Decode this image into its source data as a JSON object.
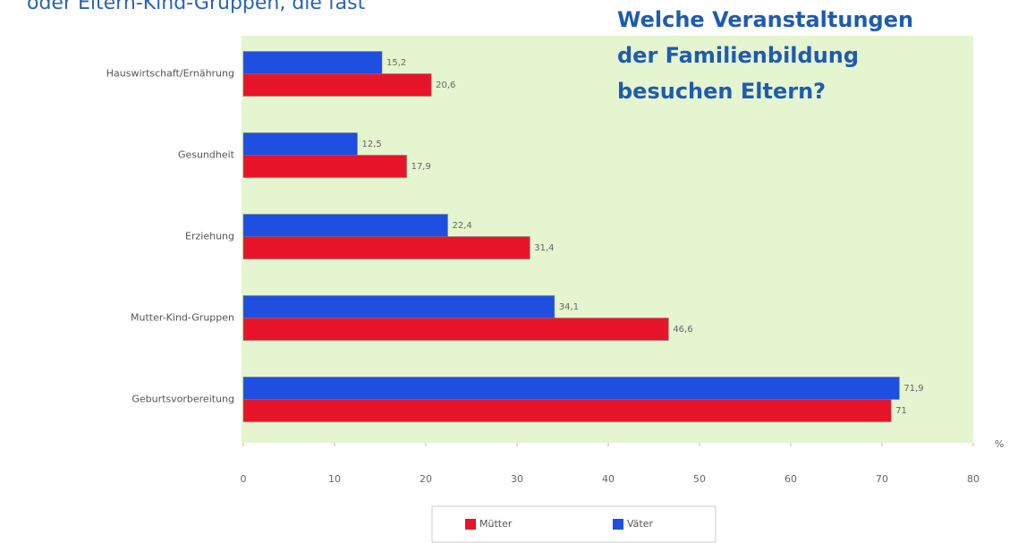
{
  "intro": "oder Eltern-Kind-Gruppen, die fast",
  "chart_data": {
    "type": "bar",
    "orientation": "horizontal",
    "title": [
      "Welche Veranstaltungen",
      "der Familienbildung",
      "besuchen Eltern?"
    ],
    "xlabel": "%",
    "categories": [
      "Hauswirtschaft/Ernährung",
      "Gesundheit",
      "Erziehung",
      "Mutter-Kind-Gruppen",
      "Geburtsvorbereitung"
    ],
    "series": [
      {
        "name": "Väter",
        "color": "#1f4fe0",
        "values": [
          15.2,
          12.5,
          22.4,
          34.1,
          71.9
        ],
        "value_labels": [
          "15,2",
          "12,5",
          "22,4",
          "34,1",
          "71,9"
        ]
      },
      {
        "name": "Mütter",
        "color": "#e8142a",
        "values": [
          20.6,
          17.9,
          31.4,
          46.6,
          71
        ],
        "value_labels": [
          "20,6",
          "17,9",
          "31,4",
          "46,6",
          "71"
        ]
      }
    ],
    "xlim": [
      0,
      80
    ],
    "xticks": [
      0,
      10,
      20,
      30,
      40,
      50,
      60,
      70,
      80
    ],
    "legend_order": [
      1,
      0
    ]
  }
}
